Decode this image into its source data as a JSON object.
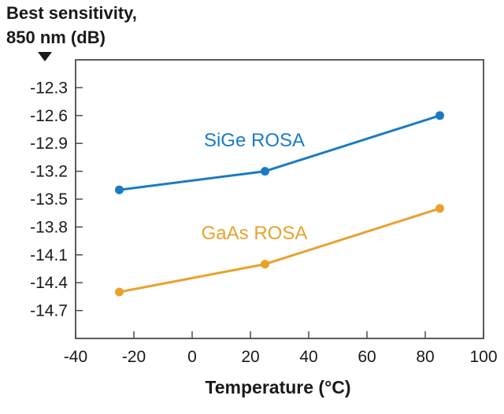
{
  "chart_data": {
    "type": "line",
    "ylabel_line1": "Best sensitivity,",
    "ylabel_line2": "850 nm (dB)",
    "xlabel": "Temperature (°C)",
    "xlim": [
      -40,
      100
    ],
    "ylim": [
      -15.0,
      -12.0
    ],
    "x_ticks": [
      -40,
      -20,
      0,
      20,
      40,
      60,
      80,
      100
    ],
    "x_tick_labels": [
      "-40",
      "-20",
      "0",
      "20",
      "40",
      "60",
      "80",
      "100"
    ],
    "y_ticks": [
      -12.3,
      -12.6,
      -12.9,
      -13.2,
      -13.5,
      -13.8,
      -14.1,
      -14.4,
      -14.7
    ],
    "y_tick_labels": [
      "-12.3",
      "-12.6",
      "-12.9",
      "-13.2",
      "-13.5",
      "-13.8",
      "-14.1",
      "-14.4",
      "-14.7"
    ],
    "grid": false,
    "series": [
      {
        "name": "SiGe ROSA",
        "color": "#1a7bc4",
        "x": [
          -25,
          25,
          85
        ],
        "values": [
          -13.4,
          -13.2,
          -12.6
        ]
      },
      {
        "name": "GaAs ROSA",
        "color": "#e8a22c",
        "x": [
          -25,
          25,
          85
        ],
        "values": [
          -14.5,
          -14.2,
          -13.6
        ]
      }
    ]
  }
}
